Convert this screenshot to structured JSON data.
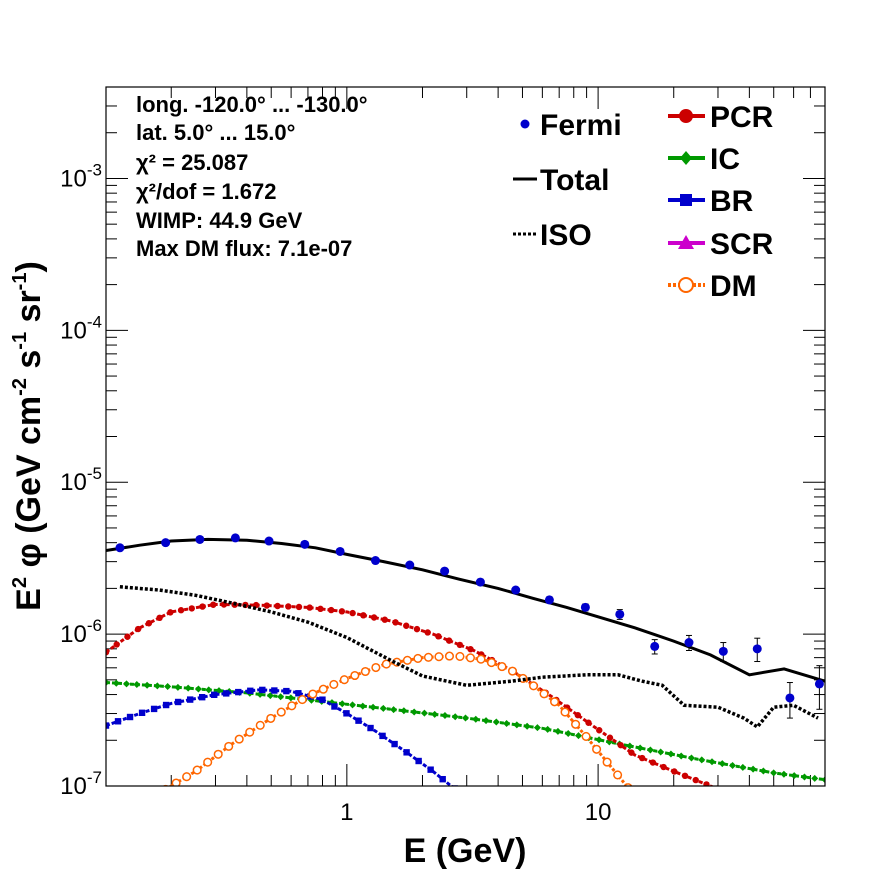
{
  "chart_data": {
    "type": "scatter",
    "xlabel": "E (GeV)",
    "ylabel": "E^2 φ (GeV cm^-2 s^-1 sr^-1)",
    "xscale": "log",
    "yscale": "log",
    "xlim": [
      0.11,
      80
    ],
    "ylim": [
      1e-07,
      0.004
    ],
    "x_tick_labels": [
      {
        "value": 1,
        "label": "1"
      },
      {
        "value": 10,
        "label": "10"
      }
    ],
    "y_tick_labels": [
      {
        "value": 1e-07,
        "base": "10",
        "exp": "-7"
      },
      {
        "value": 1e-06,
        "base": "10",
        "exp": "-6"
      },
      {
        "value": 1e-05,
        "base": "10",
        "exp": "-5"
      },
      {
        "value": 0.0001,
        "base": "10",
        "exp": "-4"
      },
      {
        "value": 0.001,
        "base": "10",
        "exp": "-3"
      }
    ],
    "info_lines": [
      "long. -120.0° ... -130.0°",
      "lat. 5.0° ... 15.0°",
      "χ² = 25.087",
      "χ²/dof = 1.672",
      "WIMP: 44.9 GeV",
      "Max DM flux: 7.1e-07"
    ],
    "legend_left": [
      {
        "name": "Fermi",
        "color": "#0000cc",
        "style": "marker"
      },
      {
        "name": "Total",
        "color": "#000000",
        "style": "line"
      },
      {
        "name": "ISO",
        "color": "#000000",
        "style": "dotted"
      }
    ],
    "legend_right": [
      {
        "name": "PCR",
        "color": "#cc0000",
        "marker": "circle"
      },
      {
        "name": "IC",
        "color": "#009900",
        "marker": "diamond"
      },
      {
        "name": "BR",
        "color": "#0000cc",
        "marker": "square"
      },
      {
        "name": "SCR",
        "color": "#cc00cc",
        "marker": "triangle"
      },
      {
        "name": "DM",
        "color": "#ff6600",
        "marker": "open-circle"
      }
    ],
    "fermi": [
      {
        "x": 0.125,
        "y": 3.7e-06,
        "err": 1e-07
      },
      {
        "x": 0.19,
        "y": 4e-06,
        "err": 1e-07
      },
      {
        "x": 0.26,
        "y": 4.2e-06,
        "err": 1e-07
      },
      {
        "x": 0.36,
        "y": 4.3e-06,
        "err": 1e-07
      },
      {
        "x": 0.49,
        "y": 4.1e-06,
        "err": 1e-07
      },
      {
        "x": 0.68,
        "y": 3.9e-06,
        "err": 1e-07
      },
      {
        "x": 0.94,
        "y": 3.5e-06,
        "err": 1e-07
      },
      {
        "x": 1.3,
        "y": 3.05e-06,
        "err": 1e-07
      },
      {
        "x": 1.78,
        "y": 2.85e-06,
        "err": 1e-07
      },
      {
        "x": 2.45,
        "y": 2.6e-06,
        "err": 1e-07
      },
      {
        "x": 3.4,
        "y": 2.2e-06,
        "err": 1e-07
      },
      {
        "x": 4.7,
        "y": 1.95e-06,
        "err": 8e-08
      },
      {
        "x": 6.4,
        "y": 1.68e-06,
        "err": 8e-08
      },
      {
        "x": 8.9,
        "y": 1.5e-06,
        "err": 8e-08
      },
      {
        "x": 12.2,
        "y": 1.35e-06,
        "err": 1e-07
      },
      {
        "x": 16.8,
        "y": 8.3e-07,
        "err": 9e-08
      },
      {
        "x": 23.0,
        "y": 8.8e-07,
        "err": 1e-07
      },
      {
        "x": 31.5,
        "y": 7.7e-07,
        "err": 1.1e-07
      },
      {
        "x": 43.0,
        "y": 8e-07,
        "err": 1.4e-07
      },
      {
        "x": 58.0,
        "y": 3.8e-07,
        "err": 1e-07
      },
      {
        "x": 76.0,
        "y": 4.7e-07,
        "err": 1.5e-07
      }
    ],
    "total": {
      "x": [
        0.11,
        0.15,
        0.2,
        0.28,
        0.4,
        0.55,
        0.75,
        1.0,
        1.4,
        2.0,
        2.8,
        4.0,
        5.5,
        7.5,
        10.0,
        14.0,
        20.0,
        28.0,
        40.0,
        55.0,
        80.0
      ],
      "y": [
        3.55e-06,
        3.85e-06,
        4.1e-06,
        4.2e-06,
        4.15e-06,
        3.95e-06,
        3.7e-06,
        3.35e-06,
        3e-06,
        2.65e-06,
        2.3e-06,
        2e-06,
        1.72e-06,
        1.5e-06,
        1.3e-06,
        1.1e-06,
        9e-07,
        7.3e-07,
        5.4e-07,
        5.9e-07,
        4.9e-07
      ]
    },
    "iso": {
      "x": [
        0.125,
        0.18,
        0.25,
        0.35,
        0.5,
        0.7,
        1.0,
        1.5,
        2.0,
        3.0,
        4.5,
        6.0,
        9.0,
        12.0,
        15.0,
        18.0,
        22.0,
        30.0,
        38.0,
        43.0,
        50.0,
        60.0,
        75.0
      ],
      "y": [
        2.05e-06,
        1.95e-06,
        1.8e-06,
        1.6e-06,
        1.4e-06,
        1.2e-06,
        9.5e-07,
        6.7e-07,
        5.3e-07,
        4.6e-07,
        4.9e-07,
        5.2e-07,
        5.4e-07,
        5.4e-07,
        4.9e-07,
        4.6e-07,
        3.4e-07,
        3.3e-07,
        2.8e-07,
        2.45e-07,
        3.3e-07,
        3.4e-07,
        2.8e-07
      ]
    },
    "pcr": {
      "x": [
        0.11,
        0.15,
        0.2,
        0.3,
        0.45,
        0.7,
        1.0,
        1.5,
        2.2,
        3.2,
        4.5,
        6.5,
        9.5,
        14.0,
        20.0,
        28.0,
        40.0
      ],
      "y": [
        7.6e-07,
        1.1e-06,
        1.4e-06,
        1.57e-06,
        1.55e-06,
        1.5e-06,
        1.4e-06,
        1.22e-06,
        1e-06,
        7.8e-07,
        5.8e-07,
        3.9e-07,
        2.5e-07,
        1.6e-07,
        1.25e-07,
        1e-07,
        8e-08
      ]
    },
    "ic": {
      "x": [
        0.11,
        0.2,
        0.4,
        0.8,
        1.5,
        3.0,
        6.0,
        12.0,
        25.0,
        50.0,
        80.0
      ],
      "y": [
        4.8e-07,
        4.5e-07,
        4.1e-07,
        3.6e-07,
        3.2e-07,
        2.8e-07,
        2.4e-07,
        1.9e-07,
        1.5e-07,
        1.22e-07,
        1.1e-07
      ]
    },
    "br": {
      "x": [
        0.11,
        0.15,
        0.2,
        0.3,
        0.45,
        0.6,
        0.8,
        1.0,
        1.3,
        1.7,
        2.2,
        2.6,
        3.0
      ],
      "y": [
        2.5e-07,
        3e-07,
        3.5e-07,
        4e-07,
        4.3e-07,
        4.2e-07,
        3.7e-07,
        3e-07,
        2.3e-07,
        1.7e-07,
        1.25e-07,
        1e-07,
        8.5e-08
      ]
    },
    "dm": {
      "x": [
        0.19,
        0.25,
        0.35,
        0.5,
        0.7,
        1.0,
        1.4,
        2.0,
        2.7,
        3.5,
        4.5,
        5.5,
        7.0,
        9.0,
        11.0,
        13.0,
        14.5
      ],
      "y": [
        9.5e-08,
        1.25e-07,
        1.9e-07,
        2.8e-07,
        3.9e-07,
        5.1e-07,
        6.3e-07,
        7e-07,
        7.2e-07,
        6.8e-07,
        5.8e-07,
        4.6e-07,
        3.4e-07,
        2.1e-07,
        1.4e-07,
        1e-07,
        8e-08
      ]
    }
  }
}
